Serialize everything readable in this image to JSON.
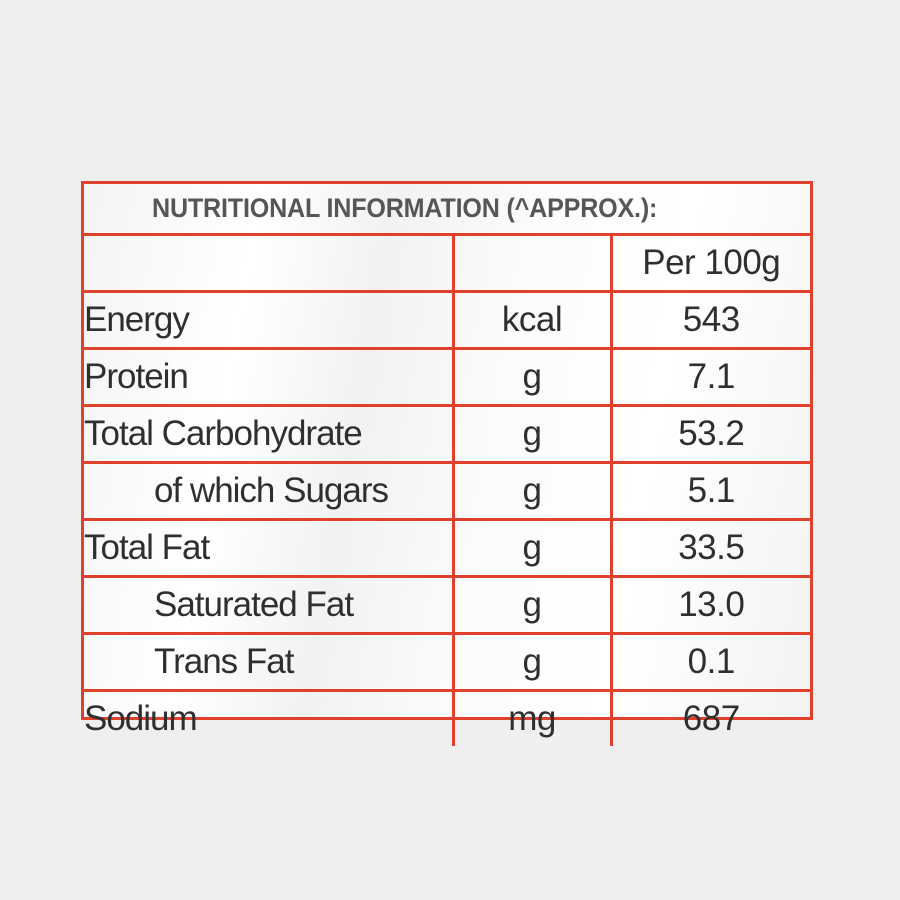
{
  "title": "NUTRITIONAL INFORMATION (^APPROX.):",
  "header": {
    "name": "",
    "unit": "",
    "value": "Per 100g"
  },
  "rows": [
    {
      "name": "Energy",
      "unit": "kcal",
      "value": "543"
    },
    {
      "name": "Protein",
      "unit": "g",
      "value": "7.1"
    },
    {
      "name": "Total Carbohydrate",
      "unit": "g",
      "value": "53.2"
    },
    {
      "name": "of which Sugars",
      "unit": "g",
      "value": "5.1"
    },
    {
      "name": "Total Fat",
      "unit": "g",
      "value": "33.5"
    },
    {
      "name": "Saturated Fat",
      "unit": "g",
      "value": "13.0"
    },
    {
      "name": "Trans Fat",
      "unit": "g",
      "value": "0.1"
    },
    {
      "name": "Sodium",
      "unit": "mg",
      "value": "687"
    }
  ],
  "colors": {
    "border": "#e0412c",
    "background": "#efefef",
    "text": "#2f2f2f",
    "title_text": "#565656"
  }
}
